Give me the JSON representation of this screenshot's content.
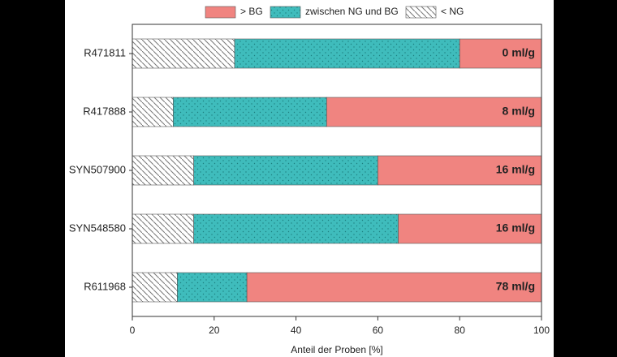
{
  "chart_data": {
    "type": "stacked_barh",
    "categories": [
      "R471811",
      "R417888",
      "SYN507900",
      "SYN548580",
      "R611968"
    ],
    "series": [
      {
        "name": "< NG",
        "color": "#ffffff",
        "pattern": "hatch",
        "values": [
          25,
          10,
          15,
          15,
          11
        ]
      },
      {
        "name": "zwischen NG und BG",
        "color": "#3fbcbc",
        "pattern": "dots",
        "values": [
          55,
          37.5,
          45,
          50,
          17
        ]
      },
      {
        "name": "> BG",
        "color": "#f08480",
        "values": [
          20,
          52.5,
          40,
          35,
          72
        ]
      }
    ],
    "annotations": [
      "0 ml/g",
      "8 ml/g",
      "16 ml/g",
      "16 ml/g",
      "78 ml/g"
    ],
    "xlabel": "Anteil der Proben [%]",
    "xlim": [
      0,
      100
    ],
    "xticks": [
      0,
      20,
      40,
      60,
      80,
      100
    ]
  }
}
